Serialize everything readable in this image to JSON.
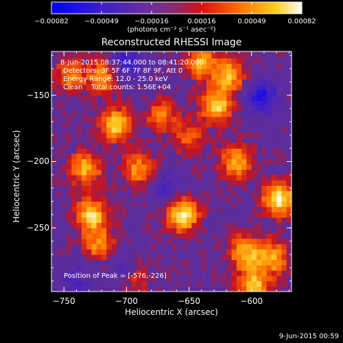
{
  "chart_data": {
    "type": "heatmap",
    "title": "Reconstructed RHESSI Image",
    "xlabel": "Heliocentric X (arcsec)",
    "ylabel": "Heliocentric Y (arcsec)",
    "xlim": [
      -760,
      -568
    ],
    "ylim": [
      -298,
      -117
    ],
    "x_ticks": [
      -750,
      -700,
      -650,
      -600
    ],
    "y_ticks": [
      -150,
      -200,
      -250
    ],
    "colorbar": {
      "range": [
        -0.00082,
        0.00082
      ],
      "tick_labels": [
        "-0.00082",
        "-0.00049",
        "-0.00016",
        "0.00016",
        "0.00049",
        "0.00082"
      ],
      "units": "(photons cm⁻² s⁻¹ asec⁻²)"
    },
    "annotations": {
      "time": "8-Jun-2015 08:37:44.000 to 08:41:20.000",
      "detectors": "Detectors: 3F 5F 6F 7F 8F 9F, Att 0",
      "energy": "Energy Range: 12.0 - 25.0 keV",
      "clean": "Clean    Total counts: 1.56E+04",
      "peak": "Position of Peak = [-576,-226]"
    },
    "hotspots": [
      {
        "x": -745,
        "y": -135,
        "v": 0.55
      },
      {
        "x": -733,
        "y": -205,
        "v": 0.75
      },
      {
        "x": -728,
        "y": -240,
        "v": 0.85
      },
      {
        "x": -722,
        "y": -262,
        "v": 0.6
      },
      {
        "x": -718,
        "y": -135,
        "v": 0.65
      },
      {
        "x": -708,
        "y": -172,
        "v": 0.85
      },
      {
        "x": -690,
        "y": -205,
        "v": 0.65
      },
      {
        "x": -693,
        "y": -285,
        "v": 0.55
      },
      {
        "x": -672,
        "y": -165,
        "v": 0.55
      },
      {
        "x": -655,
        "y": -240,
        "v": 0.95
      },
      {
        "x": -650,
        "y": -182,
        "v": 0.45
      },
      {
        "x": -640,
        "y": -125,
        "v": 0.7
      },
      {
        "x": -628,
        "y": -158,
        "v": 0.85
      },
      {
        "x": -618,
        "y": -135,
        "v": 0.75
      },
      {
        "x": -612,
        "y": -200,
        "v": 0.7
      },
      {
        "x": -605,
        "y": -268,
        "v": 0.75
      },
      {
        "x": -598,
        "y": -293,
        "v": 0.8
      },
      {
        "x": -578,
        "y": -228,
        "v": 1.0
      },
      {
        "x": -583,
        "y": -272,
        "v": 0.7
      }
    ],
    "coldspots": [
      {
        "x": -700,
        "y": -125,
        "v": -0.6
      },
      {
        "x": -700,
        "y": -280,
        "v": -0.5
      },
      {
        "x": -592,
        "y": -152,
        "v": -0.75
      },
      {
        "x": -668,
        "y": -218,
        "v": -0.4
      },
      {
        "x": -740,
        "y": -290,
        "v": -0.4
      }
    ]
  },
  "footer": {
    "date": "9-Jun-2015 00:59"
  }
}
